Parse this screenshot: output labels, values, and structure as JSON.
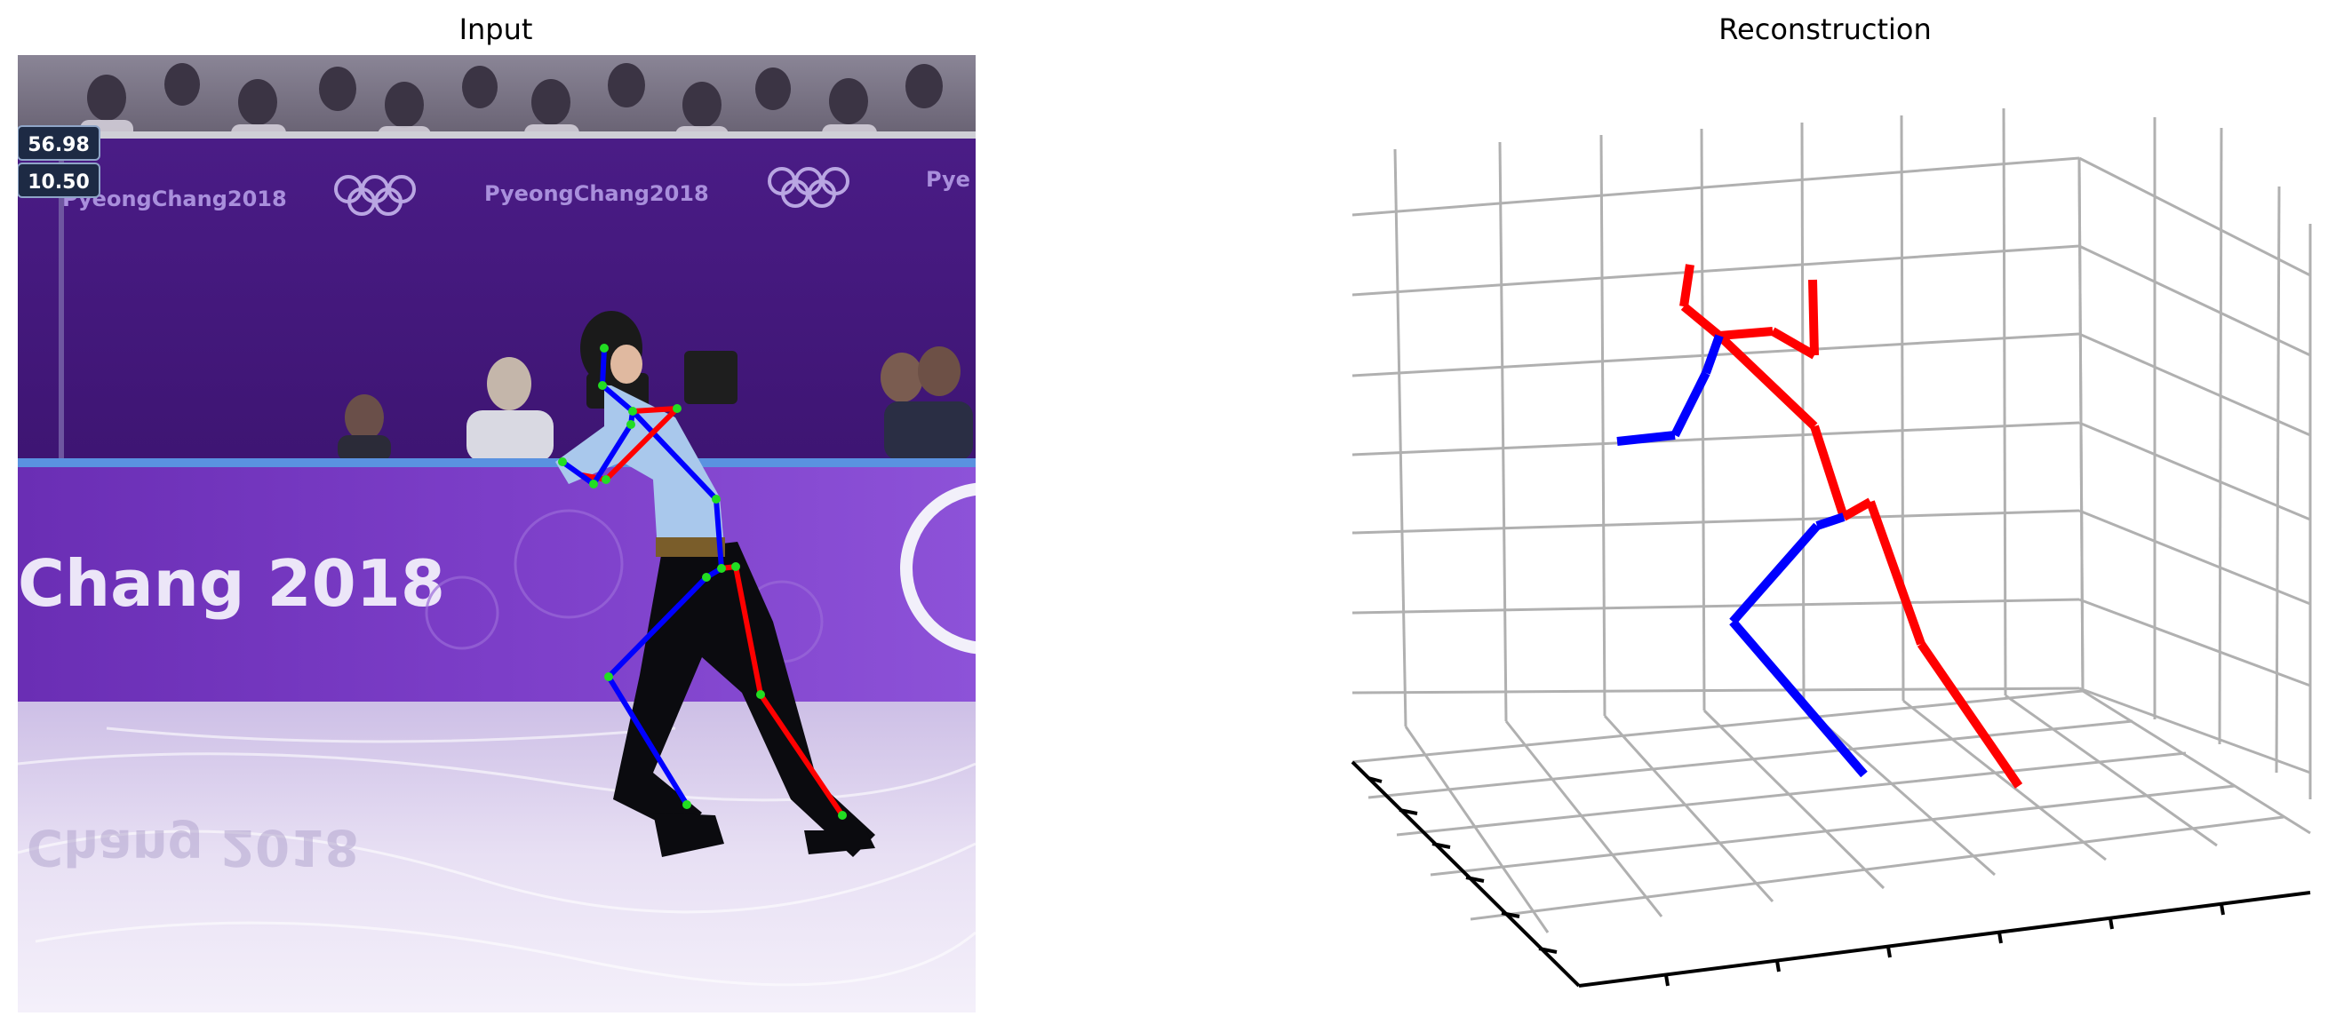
{
  "titles": {
    "left": "Input",
    "right": "Reconstruction"
  },
  "input_panel": {
    "scoreboard": {
      "score_top": "56.98",
      "score_bottom": "10.50"
    },
    "arena_text": {
      "banner_logo": "PyeongChang2018",
      "banner_logo_right": "Pye",
      "board_large": "Chang 2018",
      "ice_reflection": "Chang 2018"
    },
    "keypoint_color": "#22dd22",
    "left_limb_color": "#0000ff",
    "right_limb_color": "#ff0000"
  },
  "reconstruction_panel": {
    "left_limb_color": "#0000ff",
    "right_limb_color": "#ff0000",
    "grid_color": "#b0b0b0",
    "axis_color": "#000000"
  },
  "chart_data": {
    "type": "diagram",
    "panels": [
      "Input",
      "Reconstruction"
    ],
    "skeleton_parts": [
      "head",
      "neck",
      "spine",
      "left-arm",
      "right-arm",
      "left-leg",
      "right-leg"
    ]
  }
}
